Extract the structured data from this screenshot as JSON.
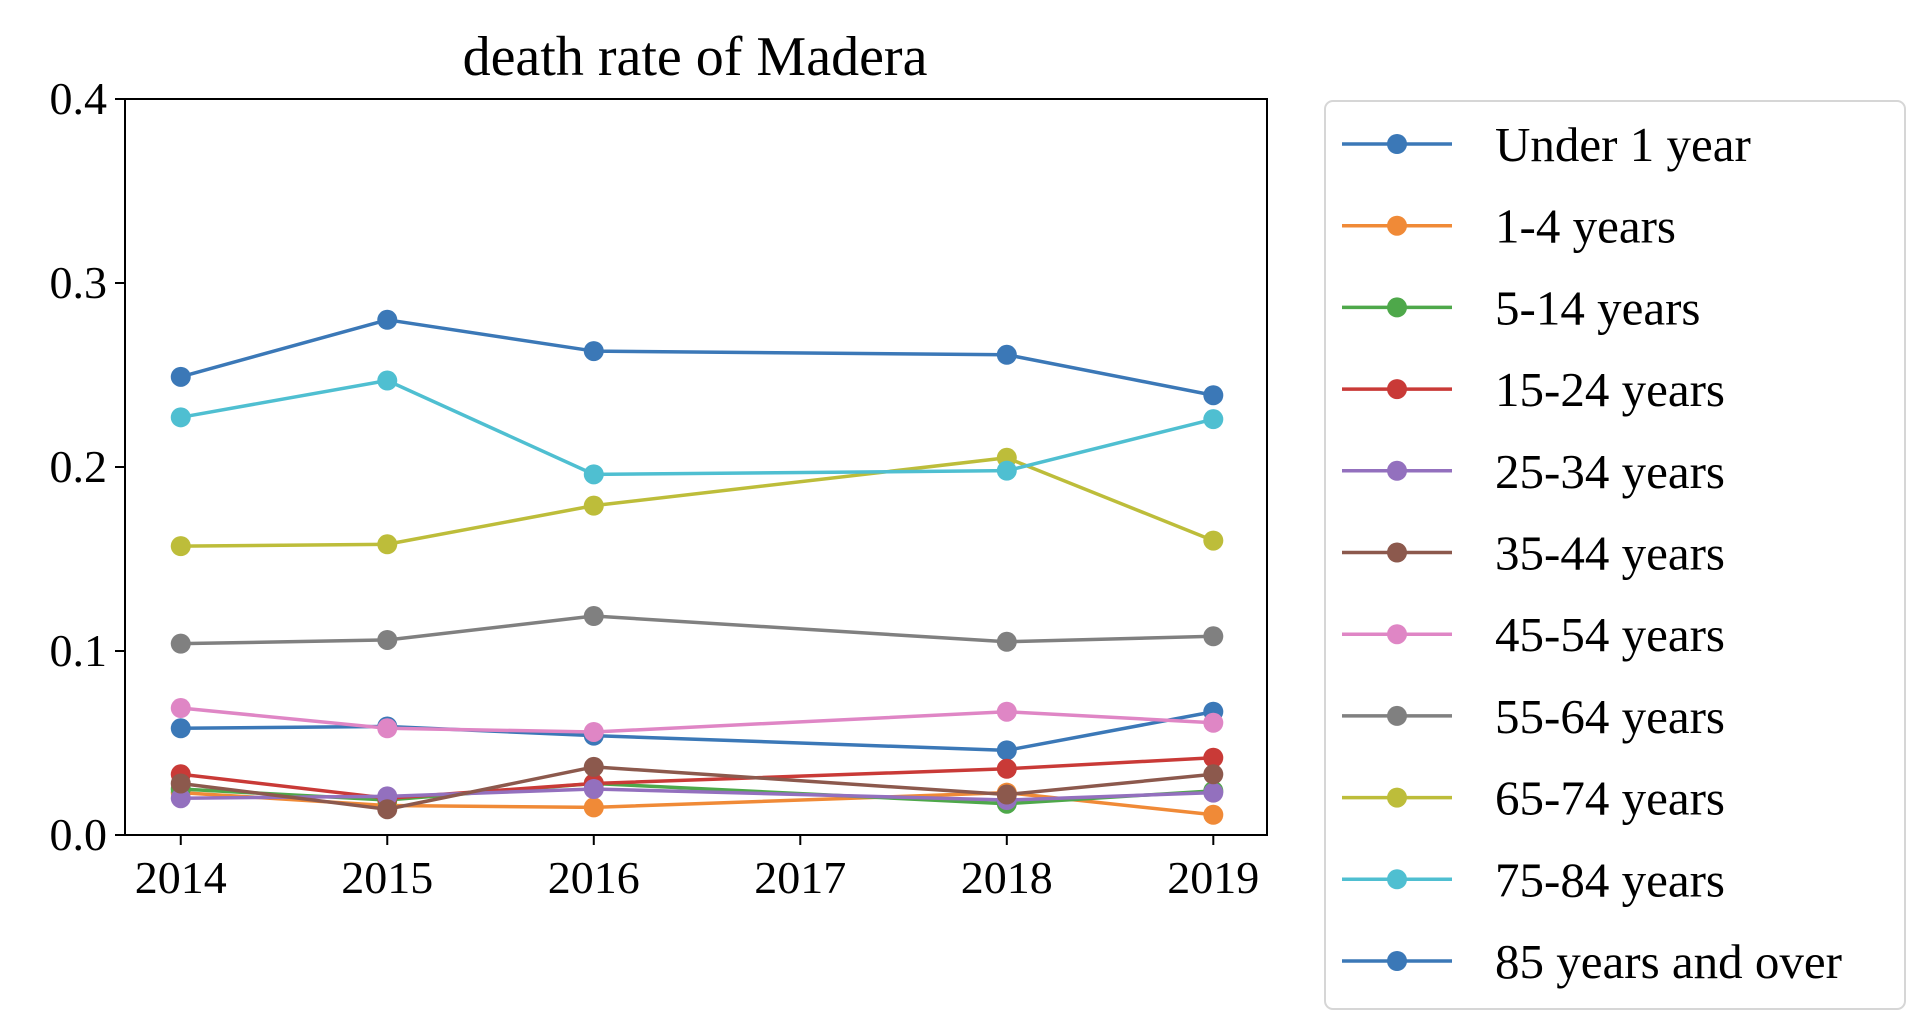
{
  "chart_data": {
    "type": "line",
    "title": "death rate of Madera",
    "xlabel": "",
    "ylabel": "",
    "x": [
      2014,
      2015,
      2016,
      2018,
      2019
    ],
    "xticks": [
      "2014",
      "2015",
      "2016",
      "2017",
      "2018",
      "2019"
    ],
    "yticks": [
      "0.0",
      "0.1",
      "0.2",
      "0.3",
      "0.4"
    ],
    "xlim": [
      2013.73,
      2019.26
    ],
    "ylim": [
      0.0,
      0.4
    ],
    "grid": false,
    "legend_position": "outside-right",
    "series": [
      {
        "name": "Under 1 year",
        "color": "#3b78b7",
        "values": [
          0.058,
          0.059,
          0.054,
          0.046,
          0.067
        ]
      },
      {
        "name": "1-4 years",
        "color": "#f08a37",
        "values": [
          0.023,
          0.016,
          0.015,
          0.023,
          0.011
        ]
      },
      {
        "name": "5-14 years",
        "color": "#4ea84a",
        "values": [
          0.025,
          0.019,
          0.028,
          0.017,
          0.024
        ]
      },
      {
        "name": "15-24 years",
        "color": "#c93a37",
        "values": [
          0.033,
          0.02,
          0.028,
          0.036,
          0.042
        ]
      },
      {
        "name": "25-34 years",
        "color": "#9370be",
        "values": [
          0.02,
          0.021,
          0.025,
          0.019,
          0.023
        ]
      },
      {
        "name": "35-44 years",
        "color": "#8c594d",
        "values": [
          0.028,
          0.014,
          0.037,
          0.022,
          0.033
        ]
      },
      {
        "name": "45-54 years",
        "color": "#df86c5",
        "values": [
          0.069,
          0.058,
          0.056,
          0.067,
          0.061
        ]
      },
      {
        "name": "55-64 years",
        "color": "#808080",
        "values": [
          0.104,
          0.106,
          0.119,
          0.105,
          0.108
        ]
      },
      {
        "name": "65-74 years",
        "color": "#bdbd3a",
        "values": [
          0.157,
          0.158,
          0.179,
          0.205,
          0.16
        ]
      },
      {
        "name": "75-84 years",
        "color": "#4fbfd1",
        "values": [
          0.227,
          0.247,
          0.196,
          0.198,
          0.226
        ]
      },
      {
        "name": "85 years and over",
        "color": "#3b78b7",
        "values": [
          0.249,
          0.28,
          0.263,
          0.261,
          0.239
        ]
      }
    ]
  }
}
